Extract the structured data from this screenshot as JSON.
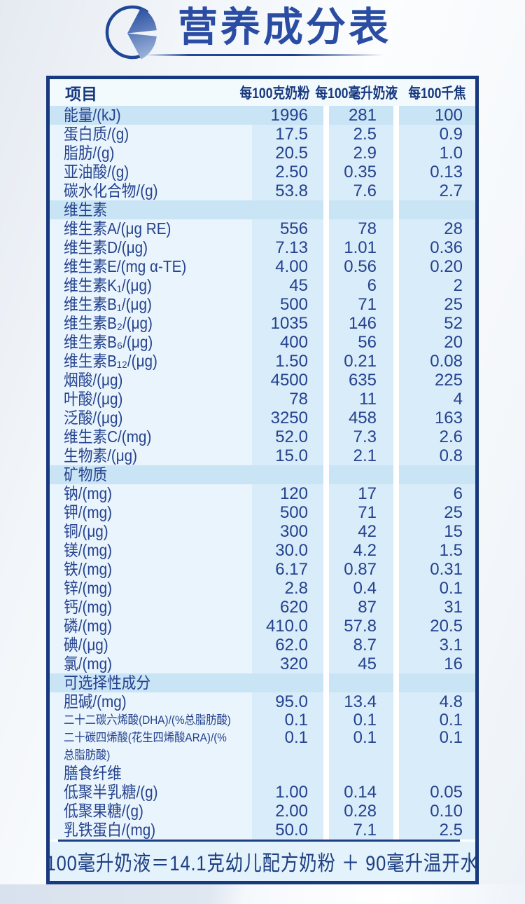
{
  "page": {
    "title": "营养成分表",
    "title_icon": "pie-chart"
  },
  "colors": {
    "border_navy": "#17397d",
    "text_navy": "#24428e",
    "header_text_navy": "#16387e",
    "title_blue": "#2a4da3",
    "row_highlight": "#c9e4f5",
    "value_column_bg": "#d9ecf9",
    "label_column_bg": "#e9f4fc",
    "header_row_bg": "#f3fafe",
    "footer_bg": "#e4f2fb"
  },
  "table": {
    "column_headers": [
      "项目",
      "每100克奶粉",
      "每100毫升奶液",
      "每100千焦"
    ],
    "rows": [
      {
        "type": "item",
        "highlight": true,
        "label": "能量/(kJ)",
        "v1": "1996",
        "v2": "281",
        "v3": "100"
      },
      {
        "type": "item",
        "label": "蛋白质/(g)",
        "v1": "17.5",
        "v2": "2.5",
        "v3": "0.9"
      },
      {
        "type": "item",
        "label": "脂肪/(g)",
        "v1": "20.5",
        "v2": "2.9",
        "v3": "1.0"
      },
      {
        "type": "item",
        "label": "亚油酸/(g)",
        "v1": "2.50",
        "v2": "0.35",
        "v3": "0.13"
      },
      {
        "type": "item",
        "label": "碳水化合物/(g)",
        "v1": "53.8",
        "v2": "7.6",
        "v3": "2.7"
      },
      {
        "type": "section",
        "label": "维生素"
      },
      {
        "type": "item",
        "label": "维生素A/(μg RE)",
        "v1": "556",
        "v2": "78",
        "v3": "28"
      },
      {
        "type": "item",
        "label": "维生素D/(μg)",
        "v1": "7.13",
        "v2": "1.01",
        "v3": "0.36"
      },
      {
        "type": "item",
        "label": "维生素E/(mg α-TE)",
        "v1": "4.00",
        "v2": "0.56",
        "v3": "0.20"
      },
      {
        "type": "item",
        "label": "维生素K₁/(μg)",
        "v1": "45",
        "v2": "6",
        "v3": "2"
      },
      {
        "type": "item",
        "label": "维生素B₁/(μg)",
        "v1": "500",
        "v2": "71",
        "v3": "25"
      },
      {
        "type": "item",
        "label": "维生素B₂/(μg)",
        "v1": "1035",
        "v2": "146",
        "v3": "52"
      },
      {
        "type": "item",
        "label": "维生素B₆/(μg)",
        "v1": "400",
        "v2": "56",
        "v3": "20"
      },
      {
        "type": "item",
        "label": "维生素B₁₂/(μg)",
        "v1": "1.50",
        "v2": "0.21",
        "v3": "0.08"
      },
      {
        "type": "item",
        "label": "烟酸/(μg)",
        "v1": "4500",
        "v2": "635",
        "v3": "225"
      },
      {
        "type": "item",
        "label": "叶酸/(μg)",
        "v1": "78",
        "v2": "11",
        "v3": "4"
      },
      {
        "type": "item",
        "label": "泛酸/(μg)",
        "v1": "3250",
        "v2": "458",
        "v3": "163"
      },
      {
        "type": "item",
        "label": "维生素C/(mg)",
        "v1": "52.0",
        "v2": "7.3",
        "v3": "2.6"
      },
      {
        "type": "item",
        "label": "生物素/(μg)",
        "v1": "15.0",
        "v2": "2.1",
        "v3": "0.8"
      },
      {
        "type": "section",
        "label": "矿物质"
      },
      {
        "type": "item",
        "label": "钠/(mg)",
        "v1": "120",
        "v2": "17",
        "v3": "6"
      },
      {
        "type": "item",
        "label": "钾/(mg)",
        "v1": "500",
        "v2": "71",
        "v3": "25"
      },
      {
        "type": "item",
        "label": "铜/(μg)",
        "v1": "300",
        "v2": "42",
        "v3": "15"
      },
      {
        "type": "item",
        "label": "镁/(mg)",
        "v1": "30.0",
        "v2": "4.2",
        "v3": "1.5"
      },
      {
        "type": "item",
        "label": "铁/(mg)",
        "v1": "6.17",
        "v2": "0.87",
        "v3": "0.31"
      },
      {
        "type": "item",
        "label": "锌/(mg)",
        "v1": "2.8",
        "v2": "0.4",
        "v3": "0.1"
      },
      {
        "type": "item",
        "label": "钙/(mg)",
        "v1": "620",
        "v2": "87",
        "v3": "31"
      },
      {
        "type": "item",
        "label": "磷/(mg)",
        "v1": "410.0",
        "v2": "57.8",
        "v3": "20.5"
      },
      {
        "type": "item",
        "label": "碘/(μg)",
        "v1": "62.0",
        "v2": "8.7",
        "v3": "3.1"
      },
      {
        "type": "item",
        "label": "氯/(mg)",
        "v1": "320",
        "v2": "45",
        "v3": "16"
      },
      {
        "type": "section",
        "label": "可选择性成分"
      },
      {
        "type": "item",
        "label": "胆碱/(mg)",
        "v1": "95.0",
        "v2": "13.4",
        "v3": "4.8"
      },
      {
        "type": "item",
        "small": true,
        "label": "二十二碳六烯酸(DHA)/(%总脂肪酸)",
        "v1": "0.1",
        "v2": "0.1",
        "v3": "0.1"
      },
      {
        "type": "item",
        "small": true,
        "label": "二十碳四烯酸(花生四烯酸ARA)/(%总脂肪酸)",
        "v1": "0.1",
        "v2": "0.1",
        "v3": "0.1"
      },
      {
        "type": "item",
        "label": "膳食纤维",
        "v1": "",
        "v2": "",
        "v3": ""
      },
      {
        "type": "item",
        "label": "低聚半乳糖/(g)",
        "v1": "1.00",
        "v2": "0.14",
        "v3": "0.05"
      },
      {
        "type": "item",
        "label": "低聚果糖/(g)",
        "v1": "2.00",
        "v2": "0.28",
        "v3": "0.10"
      },
      {
        "type": "item",
        "label": "乳铁蛋白/(mg)",
        "v1": "50.0",
        "v2": "7.1",
        "v3": "2.5"
      }
    ],
    "footnote": "100毫升奶液＝14.1克幼儿配方奶粉 ＋ 90毫升温开水"
  }
}
